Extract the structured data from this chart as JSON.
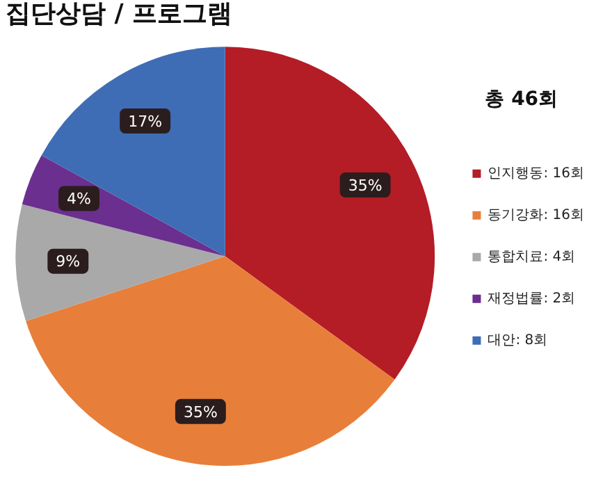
{
  "chart_data": {
    "type": "pie",
    "title": "집단상담 / 프로그램",
    "legend_title": "총 46회",
    "categories": [
      "인지행동: 16회",
      "동기강화: 16회",
      "통합치료: 4회",
      "재정법률: 2회",
      "대안: 8회"
    ],
    "values": [
      35,
      35,
      9,
      4,
      17
    ],
    "value_labels": [
      "35%",
      "35%",
      "9%",
      "4%",
      "17%"
    ],
    "colors": [
      "#b41c26",
      "#e77f3a",
      "#a9a9a9",
      "#6b2f8f",
      "#3f6db5"
    ],
    "legend": "right"
  }
}
